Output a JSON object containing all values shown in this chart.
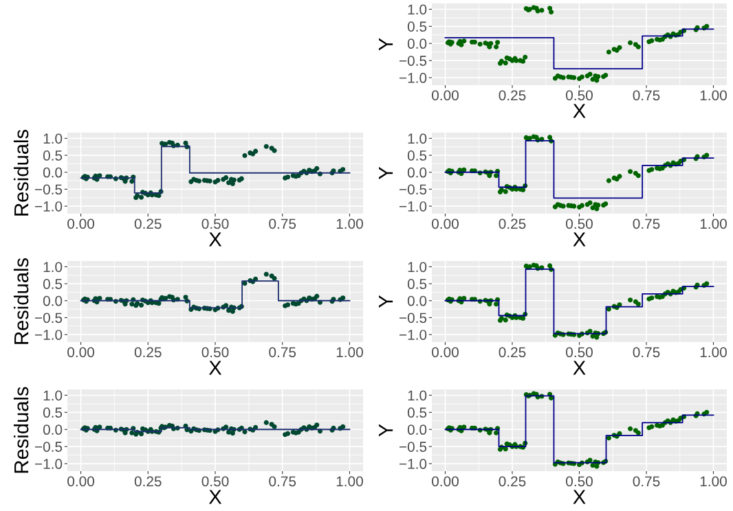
{
  "chart_data": [
    {
      "type": "scatter",
      "xlabel": "X",
      "ylabel": "Y",
      "xlim": [
        -0.05,
        1.05
      ],
      "ylim": [
        -1.22,
        1.17
      ],
      "grid": true,
      "xticks": [
        {
          "value": 0,
          "label": "0.00"
        },
        {
          "value": 0.25,
          "label": "0.25"
        },
        {
          "value": 0.5,
          "label": "0.50"
        },
        {
          "value": 0.75,
          "label": "0.75"
        },
        {
          "value": 1,
          "label": "1.00"
        }
      ],
      "yticks": [
        {
          "value": -1,
          "label": "−1.0"
        },
        {
          "value": -0.5,
          "label": "−0.5"
        },
        {
          "value": 0,
          "label": "0.0"
        },
        {
          "value": 0.5,
          "label": "0.5"
        },
        {
          "value": 1,
          "label": "1.0"
        }
      ],
      "series": [
        {
          "marker": "circle",
          "color": "#006400",
          "x": [
            0.01,
            0.015,
            0.02,
            0.025,
            0.05,
            0.055,
            0.06,
            0.07,
            0.1,
            0.11,
            0.13,
            0.15,
            0.16,
            0.165,
            0.17,
            0.19,
            0.195,
            0.205,
            0.21,
            0.225,
            0.23,
            0.24,
            0.25,
            0.26,
            0.265,
            0.28,
            0.29,
            0.298,
            0.302,
            0.31,
            0.315,
            0.33,
            0.34,
            0.345,
            0.36,
            0.39,
            0.395,
            0.41,
            0.42,
            0.43,
            0.44,
            0.46,
            0.47,
            0.48,
            0.5,
            0.51,
            0.53,
            0.54,
            0.55,
            0.56,
            0.565,
            0.57,
            0.59,
            0.598,
            0.61,
            0.63,
            0.64,
            0.65,
            0.69,
            0.71,
            0.72,
            0.76,
            0.77,
            0.79,
            0.8,
            0.81,
            0.82,
            0.83,
            0.84,
            0.85,
            0.86,
            0.87,
            0.878,
            0.89,
            0.935,
            0.94,
            0.965,
            0.975
          ],
          "values": [
            0.02,
            0.05,
            -0.02,
            0.03,
            0.0,
            0.06,
            -0.04,
            0.07,
            0.04,
            0.04,
            -0.02,
            0.01,
            -0.02,
            -0.1,
            0.0,
            -0.1,
            0.03,
            -0.58,
            -0.52,
            -0.57,
            -0.42,
            -0.45,
            -0.5,
            -0.44,
            -0.5,
            -0.5,
            -0.52,
            -0.4,
            1.02,
            0.98,
            1.0,
            1.05,
            1.03,
            0.95,
            0.97,
            1.03,
            0.92,
            -1.02,
            -0.95,
            -0.98,
            -1.0,
            -0.98,
            -0.99,
            -1.0,
            -1.03,
            -0.98,
            -0.95,
            -0.9,
            -1.05,
            -0.95,
            -1.08,
            -0.97,
            -0.97,
            -0.93,
            -0.25,
            -0.17,
            -0.2,
            -0.12,
            0.02,
            -0.03,
            -0.1,
            0.05,
            0.08,
            0.12,
            0.1,
            0.12,
            0.2,
            0.25,
            0.2,
            0.28,
            0.24,
            0.26,
            0.33,
            0.37,
            0.4,
            0.46,
            0.45,
            0.5
          ]
        },
        {
          "type": "step",
          "color": "#00008b",
          "x": [
            0,
            0.405,
            0.735,
            0.885,
            1.0
          ],
          "values": [
            0.17,
            -0.74,
            0.22,
            0.42,
            0.42
          ]
        }
      ]
    },
    {
      "type": "scatter",
      "xlabel": "X",
      "ylabel": "Residuals",
      "xlim": [
        -0.05,
        1.05
      ],
      "ylim": [
        -1.22,
        1.17
      ],
      "grid": true,
      "xticks": [
        {
          "value": 0,
          "label": "0.00"
        },
        {
          "value": 0.25,
          "label": "0.25"
        },
        {
          "value": 0.5,
          "label": "0.50"
        },
        {
          "value": 0.75,
          "label": "0.75"
        },
        {
          "value": 1,
          "label": "1.00"
        }
      ],
      "yticks": [
        {
          "value": -1,
          "label": "−1.0"
        },
        {
          "value": -0.5,
          "label": "−0.5"
        },
        {
          "value": 0,
          "label": "0.0"
        },
        {
          "value": 0.5,
          "label": "0.5"
        },
        {
          "value": 1,
          "label": "1.0"
        }
      ],
      "series": [
        {
          "marker": "circle",
          "color": "#00482f",
          "x": [
            0.01,
            0.015,
            0.02,
            0.025,
            0.05,
            0.055,
            0.06,
            0.07,
            0.1,
            0.11,
            0.13,
            0.15,
            0.16,
            0.165,
            0.17,
            0.19,
            0.195,
            0.205,
            0.21,
            0.225,
            0.23,
            0.24,
            0.25,
            0.26,
            0.265,
            0.28,
            0.29,
            0.298,
            0.302,
            0.31,
            0.315,
            0.33,
            0.34,
            0.345,
            0.36,
            0.39,
            0.395,
            0.41,
            0.42,
            0.43,
            0.44,
            0.46,
            0.47,
            0.48,
            0.5,
            0.51,
            0.53,
            0.54,
            0.55,
            0.56,
            0.565,
            0.57,
            0.59,
            0.598,
            0.61,
            0.63,
            0.64,
            0.65,
            0.69,
            0.71,
            0.72,
            0.76,
            0.77,
            0.79,
            0.8,
            0.81,
            0.82,
            0.83,
            0.84,
            0.85,
            0.86,
            0.87,
            0.878,
            0.89,
            0.935,
            0.94,
            0.965,
            0.975
          ],
          "values": [
            -0.15,
            -0.12,
            -0.19,
            -0.14,
            -0.17,
            -0.11,
            -0.21,
            -0.1,
            -0.13,
            -0.13,
            -0.19,
            -0.16,
            -0.19,
            -0.27,
            -0.17,
            -0.27,
            -0.14,
            -0.75,
            -0.69,
            -0.74,
            -0.59,
            -0.62,
            -0.67,
            -0.61,
            -0.67,
            -0.67,
            -0.69,
            -0.57,
            0.85,
            0.81,
            0.83,
            0.88,
            0.86,
            0.78,
            0.8,
            0.86,
            0.75,
            -0.28,
            -0.21,
            -0.24,
            -0.26,
            -0.24,
            -0.25,
            -0.26,
            -0.29,
            -0.24,
            -0.21,
            -0.16,
            -0.31,
            -0.21,
            -0.34,
            -0.23,
            -0.23,
            -0.19,
            0.49,
            0.57,
            0.54,
            0.62,
            0.76,
            0.71,
            0.64,
            -0.17,
            -0.14,
            -0.1,
            -0.12,
            -0.1,
            -0.02,
            0.03,
            -0.02,
            0.06,
            0.02,
            0.04,
            0.11,
            -0.05,
            -0.02,
            0.04,
            0.03,
            0.08
          ]
        },
        {
          "type": "step",
          "color": "#1c2f6e",
          "x": [
            0,
            0.2,
            0.3,
            0.405,
            1.0
          ],
          "values": [
            -0.17,
            -0.61,
            0.76,
            -0.02,
            -0.02
          ]
        }
      ]
    },
    {
      "type": "scatter",
      "xlabel": "X",
      "ylabel": "Y",
      "xlim": [
        -0.05,
        1.05
      ],
      "ylim": [
        -1.22,
        1.17
      ],
      "grid": true,
      "xticks": [
        {
          "value": 0,
          "label": "0.00"
        },
        {
          "value": 0.25,
          "label": "0.25"
        },
        {
          "value": 0.5,
          "label": "0.50"
        },
        {
          "value": 0.75,
          "label": "0.75"
        },
        {
          "value": 1,
          "label": "1.00"
        }
      ],
      "yticks": [
        {
          "value": -1,
          "label": "−1.0"
        },
        {
          "value": -0.5,
          "label": "−0.5"
        },
        {
          "value": 0,
          "label": "0.0"
        },
        {
          "value": 0.5,
          "label": "0.5"
        },
        {
          "value": 1,
          "label": "1.0"
        }
      ],
      "series": [
        {
          "marker": "circle",
          "color": "#006400",
          "x": [
            0.01,
            0.015,
            0.02,
            0.025,
            0.05,
            0.055,
            0.06,
            0.07,
            0.1,
            0.11,
            0.13,
            0.15,
            0.16,
            0.165,
            0.17,
            0.19,
            0.195,
            0.205,
            0.21,
            0.225,
            0.23,
            0.24,
            0.25,
            0.26,
            0.265,
            0.28,
            0.29,
            0.298,
            0.302,
            0.31,
            0.315,
            0.33,
            0.34,
            0.345,
            0.36,
            0.39,
            0.395,
            0.41,
            0.42,
            0.43,
            0.44,
            0.46,
            0.47,
            0.48,
            0.5,
            0.51,
            0.53,
            0.54,
            0.55,
            0.56,
            0.565,
            0.57,
            0.59,
            0.598,
            0.61,
            0.63,
            0.64,
            0.65,
            0.69,
            0.71,
            0.72,
            0.76,
            0.77,
            0.79,
            0.8,
            0.81,
            0.82,
            0.83,
            0.84,
            0.85,
            0.86,
            0.87,
            0.878,
            0.89,
            0.935,
            0.94,
            0.965,
            0.975
          ],
          "values": [
            0.02,
            0.05,
            -0.02,
            0.03,
            0.0,
            0.06,
            -0.04,
            0.07,
            0.04,
            0.04,
            -0.02,
            0.01,
            -0.02,
            -0.1,
            0.0,
            -0.1,
            0.03,
            -0.58,
            -0.52,
            -0.57,
            -0.42,
            -0.45,
            -0.5,
            -0.44,
            -0.5,
            -0.5,
            -0.52,
            -0.4,
            1.02,
            0.98,
            1.0,
            1.05,
            1.03,
            0.95,
            0.97,
            1.03,
            0.92,
            -1.02,
            -0.95,
            -0.98,
            -1.0,
            -0.98,
            -0.99,
            -1.0,
            -1.03,
            -0.98,
            -0.95,
            -0.9,
            -1.05,
            -0.95,
            -1.08,
            -0.97,
            -0.97,
            -0.93,
            -0.25,
            -0.17,
            -0.2,
            -0.12,
            0.02,
            -0.03,
            -0.1,
            0.05,
            0.08,
            0.12,
            0.1,
            0.12,
            0.2,
            0.25,
            0.2,
            0.28,
            0.24,
            0.26,
            0.33,
            0.37,
            0.4,
            0.46,
            0.45,
            0.5
          ]
        },
        {
          "type": "step",
          "color": "#00008b",
          "x": [
            0,
            0.2,
            0.3,
            0.405,
            0.735,
            0.885,
            1.0
          ],
          "values": [
            0,
            -0.44,
            0.93,
            -0.76,
            0.2,
            0.42,
            0.42
          ]
        }
      ]
    },
    {
      "type": "scatter",
      "xlabel": "X",
      "ylabel": "Residuals",
      "xlim": [
        -0.05,
        1.05
      ],
      "ylim": [
        -1.22,
        1.17
      ],
      "grid": true,
      "xticks": [
        {
          "value": 0,
          "label": "0.00"
        },
        {
          "value": 0.25,
          "label": "0.25"
        },
        {
          "value": 0.5,
          "label": "0.50"
        },
        {
          "value": 0.75,
          "label": "0.75"
        },
        {
          "value": 1,
          "label": "1.00"
        }
      ],
      "yticks": [
        {
          "value": -1,
          "label": "−1.0"
        },
        {
          "value": -0.5,
          "label": "−0.5"
        },
        {
          "value": 0,
          "label": "0.0"
        },
        {
          "value": 0.5,
          "label": "0.5"
        },
        {
          "value": 1,
          "label": "1.0"
        }
      ],
      "series": [
        {
          "marker": "circle",
          "color": "#00482f",
          "x": [
            0.01,
            0.015,
            0.02,
            0.025,
            0.05,
            0.055,
            0.06,
            0.07,
            0.1,
            0.11,
            0.13,
            0.15,
            0.16,
            0.165,
            0.17,
            0.19,
            0.195,
            0.205,
            0.21,
            0.225,
            0.23,
            0.24,
            0.25,
            0.26,
            0.265,
            0.28,
            0.29,
            0.298,
            0.302,
            0.31,
            0.315,
            0.33,
            0.34,
            0.345,
            0.36,
            0.39,
            0.395,
            0.41,
            0.42,
            0.43,
            0.44,
            0.46,
            0.47,
            0.48,
            0.5,
            0.51,
            0.53,
            0.54,
            0.55,
            0.56,
            0.565,
            0.57,
            0.59,
            0.598,
            0.61,
            0.63,
            0.64,
            0.65,
            0.69,
            0.71,
            0.72,
            0.76,
            0.77,
            0.79,
            0.8,
            0.81,
            0.82,
            0.83,
            0.84,
            0.85,
            0.86,
            0.87,
            0.878,
            0.89,
            0.935,
            0.94,
            0.965,
            0.975
          ],
          "values": [
            0.02,
            0.05,
            -0.02,
            0.03,
            0.0,
            0.06,
            -0.04,
            0.07,
            0.04,
            0.04,
            -0.02,
            0.01,
            -0.02,
            -0.1,
            0.0,
            -0.1,
            0.03,
            -0.14,
            -0.08,
            -0.13,
            0.02,
            -0.01,
            -0.06,
            0.0,
            -0.06,
            -0.06,
            -0.08,
            0.04,
            0.09,
            0.05,
            0.07,
            0.12,
            0.1,
            0.02,
            0.04,
            0.1,
            -0.01,
            -0.26,
            -0.19,
            -0.22,
            -0.24,
            -0.22,
            -0.23,
            -0.24,
            -0.27,
            -0.22,
            -0.19,
            -0.14,
            -0.29,
            -0.19,
            -0.32,
            -0.21,
            -0.21,
            -0.17,
            0.51,
            0.59,
            0.56,
            0.64,
            0.78,
            0.73,
            0.66,
            -0.15,
            -0.12,
            -0.08,
            -0.1,
            -0.08,
            0.0,
            0.05,
            0.0,
            0.08,
            0.04,
            0.06,
            0.13,
            -0.05,
            -0.02,
            0.04,
            0.03,
            0.08
          ]
        },
        {
          "type": "step",
          "color": "#1c2f6e",
          "x": [
            0,
            0.405,
            0.6,
            0.735,
            1.0
          ],
          "values": [
            0,
            -0.21,
            0.58,
            0,
            0
          ]
        }
      ]
    },
    {
      "type": "scatter",
      "xlabel": "X",
      "ylabel": "Y",
      "xlim": [
        -0.05,
        1.05
      ],
      "ylim": [
        -1.22,
        1.17
      ],
      "grid": true,
      "xticks": [
        {
          "value": 0,
          "label": "0.00"
        },
        {
          "value": 0.25,
          "label": "0.25"
        },
        {
          "value": 0.5,
          "label": "0.50"
        },
        {
          "value": 0.75,
          "label": "0.75"
        },
        {
          "value": 1,
          "label": "1.00"
        }
      ],
      "yticks": [
        {
          "value": -1,
          "label": "−1.0"
        },
        {
          "value": -0.5,
          "label": "−0.5"
        },
        {
          "value": 0,
          "label": "0.0"
        },
        {
          "value": 0.5,
          "label": "0.5"
        },
        {
          "value": 1,
          "label": "1.0"
        }
      ],
      "series": [
        {
          "marker": "circle",
          "color": "#006400",
          "x": [
            0.01,
            0.015,
            0.02,
            0.025,
            0.05,
            0.055,
            0.06,
            0.07,
            0.1,
            0.11,
            0.13,
            0.15,
            0.16,
            0.165,
            0.17,
            0.19,
            0.195,
            0.205,
            0.21,
            0.225,
            0.23,
            0.24,
            0.25,
            0.26,
            0.265,
            0.28,
            0.29,
            0.298,
            0.302,
            0.31,
            0.315,
            0.33,
            0.34,
            0.345,
            0.36,
            0.39,
            0.395,
            0.41,
            0.42,
            0.43,
            0.44,
            0.46,
            0.47,
            0.48,
            0.5,
            0.51,
            0.53,
            0.54,
            0.55,
            0.56,
            0.565,
            0.57,
            0.59,
            0.598,
            0.61,
            0.63,
            0.64,
            0.65,
            0.69,
            0.71,
            0.72,
            0.76,
            0.77,
            0.79,
            0.8,
            0.81,
            0.82,
            0.83,
            0.84,
            0.85,
            0.86,
            0.87,
            0.878,
            0.89,
            0.935,
            0.94,
            0.965,
            0.975
          ],
          "values": [
            0.02,
            0.05,
            -0.02,
            0.03,
            0.0,
            0.06,
            -0.04,
            0.07,
            0.04,
            0.04,
            -0.02,
            0.01,
            -0.02,
            -0.1,
            0.0,
            -0.1,
            0.03,
            -0.58,
            -0.52,
            -0.57,
            -0.42,
            -0.45,
            -0.5,
            -0.44,
            -0.5,
            -0.5,
            -0.52,
            -0.4,
            1.02,
            0.98,
            1.0,
            1.05,
            1.03,
            0.95,
            0.97,
            1.03,
            0.92,
            -1.02,
            -0.95,
            -0.98,
            -1.0,
            -0.98,
            -0.99,
            -1.0,
            -1.03,
            -0.98,
            -0.95,
            -0.9,
            -1.05,
            -0.95,
            -1.08,
            -0.97,
            -0.97,
            -0.93,
            -0.25,
            -0.17,
            -0.2,
            -0.12,
            0.02,
            -0.03,
            -0.1,
            0.05,
            0.08,
            0.12,
            0.1,
            0.12,
            0.2,
            0.25,
            0.2,
            0.28,
            0.24,
            0.26,
            0.33,
            0.37,
            0.4,
            0.46,
            0.45,
            0.5
          ]
        },
        {
          "type": "step",
          "color": "#00008b",
          "x": [
            0,
            0.2,
            0.3,
            0.405,
            0.6,
            0.735,
            0.885,
            1.0
          ],
          "values": [
            0,
            -0.44,
            0.93,
            -0.97,
            -0.18,
            0.2,
            0.42,
            0.42
          ]
        }
      ]
    },
    {
      "type": "scatter",
      "xlabel": "X",
      "ylabel": "Residuals",
      "xlim": [
        -0.05,
        1.05
      ],
      "ylim": [
        -1.22,
        1.17
      ],
      "grid": true,
      "xticks": [
        {
          "value": 0,
          "label": "0.00"
        },
        {
          "value": 0.25,
          "label": "0.25"
        },
        {
          "value": 0.5,
          "label": "0.50"
        },
        {
          "value": 0.75,
          "label": "0.75"
        },
        {
          "value": 1,
          "label": "1.00"
        }
      ],
      "yticks": [
        {
          "value": -1,
          "label": "−1.0"
        },
        {
          "value": -0.5,
          "label": "−0.5"
        },
        {
          "value": 0,
          "label": "0.0"
        },
        {
          "value": 0.5,
          "label": "0.5"
        },
        {
          "value": 1,
          "label": "1.0"
        }
      ],
      "series": [
        {
          "marker": "circle",
          "color": "#00482f",
          "x": [
            0.01,
            0.015,
            0.02,
            0.025,
            0.05,
            0.055,
            0.06,
            0.07,
            0.1,
            0.11,
            0.13,
            0.15,
            0.16,
            0.165,
            0.17,
            0.19,
            0.195,
            0.205,
            0.21,
            0.225,
            0.23,
            0.24,
            0.25,
            0.26,
            0.265,
            0.28,
            0.29,
            0.298,
            0.302,
            0.31,
            0.315,
            0.33,
            0.34,
            0.345,
            0.36,
            0.39,
            0.395,
            0.41,
            0.42,
            0.43,
            0.44,
            0.46,
            0.47,
            0.48,
            0.5,
            0.51,
            0.53,
            0.54,
            0.55,
            0.56,
            0.565,
            0.57,
            0.59,
            0.598,
            0.61,
            0.63,
            0.64,
            0.65,
            0.69,
            0.71,
            0.72,
            0.76,
            0.77,
            0.79,
            0.8,
            0.81,
            0.82,
            0.83,
            0.84,
            0.85,
            0.86,
            0.87,
            0.878,
            0.89,
            0.935,
            0.94,
            0.965,
            0.975
          ],
          "values": [
            0.02,
            0.05,
            -0.02,
            0.03,
            0.0,
            0.06,
            -0.04,
            0.07,
            0.04,
            0.04,
            -0.02,
            0.01,
            -0.02,
            -0.1,
            0.0,
            -0.1,
            0.03,
            -0.14,
            -0.08,
            -0.13,
            0.02,
            -0.01,
            -0.06,
            0.0,
            -0.06,
            -0.06,
            -0.08,
            0.04,
            0.09,
            0.05,
            0.07,
            0.12,
            0.1,
            0.02,
            0.04,
            0.1,
            -0.01,
            -0.05,
            0.02,
            -0.01,
            -0.03,
            -0.01,
            -0.02,
            -0.03,
            -0.06,
            -0.01,
            0.02,
            0.07,
            -0.08,
            0.02,
            -0.11,
            0.0,
            0.0,
            0.04,
            -0.07,
            0.01,
            -0.02,
            0.06,
            0.2,
            0.15,
            0.08,
            -0.15,
            -0.12,
            -0.08,
            -0.1,
            -0.08,
            0.0,
            0.05,
            0.0,
            0.08,
            0.04,
            0.06,
            0.13,
            -0.05,
            -0.02,
            0.04,
            0.03,
            0.08
          ]
        },
        {
          "type": "step",
          "color": "#1c2f6e",
          "x": [
            0,
            0.2,
            0.3,
            0.405,
            1.0
          ],
          "values": [
            0,
            -0.06,
            0.05,
            0,
            0
          ]
        }
      ]
    },
    {
      "type": "scatter",
      "xlabel": "X",
      "ylabel": "Y",
      "xlim": [
        -0.05,
        1.05
      ],
      "ylim": [
        -1.22,
        1.17
      ],
      "grid": true,
      "xticks": [
        {
          "value": 0,
          "label": "0.00"
        },
        {
          "value": 0.25,
          "label": "0.25"
        },
        {
          "value": 0.5,
          "label": "0.50"
        },
        {
          "value": 0.75,
          "label": "0.75"
        },
        {
          "value": 1,
          "label": "1.00"
        }
      ],
      "yticks": [
        {
          "value": -1,
          "label": "−1.0"
        },
        {
          "value": -0.5,
          "label": "−0.5"
        },
        {
          "value": 0,
          "label": "0.0"
        },
        {
          "value": 0.5,
          "label": "0.5"
        },
        {
          "value": 1,
          "label": "1.0"
        }
      ],
      "series": [
        {
          "marker": "circle",
          "color": "#006400",
          "x": [
            0.01,
            0.015,
            0.02,
            0.025,
            0.05,
            0.055,
            0.06,
            0.07,
            0.1,
            0.11,
            0.13,
            0.15,
            0.16,
            0.165,
            0.17,
            0.19,
            0.195,
            0.205,
            0.21,
            0.225,
            0.23,
            0.24,
            0.25,
            0.26,
            0.265,
            0.28,
            0.29,
            0.298,
            0.302,
            0.31,
            0.315,
            0.33,
            0.34,
            0.345,
            0.36,
            0.39,
            0.395,
            0.41,
            0.42,
            0.43,
            0.44,
            0.46,
            0.47,
            0.48,
            0.5,
            0.51,
            0.53,
            0.54,
            0.55,
            0.56,
            0.565,
            0.57,
            0.59,
            0.598,
            0.61,
            0.63,
            0.64,
            0.65,
            0.69,
            0.71,
            0.72,
            0.76,
            0.77,
            0.79,
            0.8,
            0.81,
            0.82,
            0.83,
            0.84,
            0.85,
            0.86,
            0.87,
            0.878,
            0.89,
            0.935,
            0.94,
            0.965,
            0.975
          ],
          "values": [
            0.02,
            0.05,
            -0.02,
            0.03,
            0.0,
            0.06,
            -0.04,
            0.07,
            0.04,
            0.04,
            -0.02,
            0.01,
            -0.02,
            -0.1,
            0.0,
            -0.1,
            0.03,
            -0.58,
            -0.52,
            -0.57,
            -0.42,
            -0.45,
            -0.5,
            -0.44,
            -0.5,
            -0.5,
            -0.52,
            -0.4,
            1.02,
            0.98,
            1.0,
            1.05,
            1.03,
            0.95,
            0.97,
            1.03,
            0.92,
            -1.02,
            -0.95,
            -0.98,
            -1.0,
            -0.98,
            -0.99,
            -1.0,
            -1.03,
            -0.98,
            -0.95,
            -0.9,
            -1.05,
            -0.95,
            -1.08,
            -0.97,
            -0.97,
            -0.93,
            -0.25,
            -0.17,
            -0.2,
            -0.12,
            0.02,
            -0.03,
            -0.1,
            0.05,
            0.08,
            0.12,
            0.1,
            0.12,
            0.2,
            0.25,
            0.2,
            0.28,
            0.24,
            0.26,
            0.33,
            0.37,
            0.4,
            0.46,
            0.45,
            0.5
          ]
        },
        {
          "type": "step",
          "color": "#00008b",
          "x": [
            0,
            0.2,
            0.3,
            0.405,
            0.6,
            0.735,
            0.885,
            1.0
          ],
          "values": [
            0,
            -0.5,
            0.98,
            -0.97,
            -0.18,
            0.2,
            0.42,
            0.42
          ]
        }
      ]
    }
  ]
}
